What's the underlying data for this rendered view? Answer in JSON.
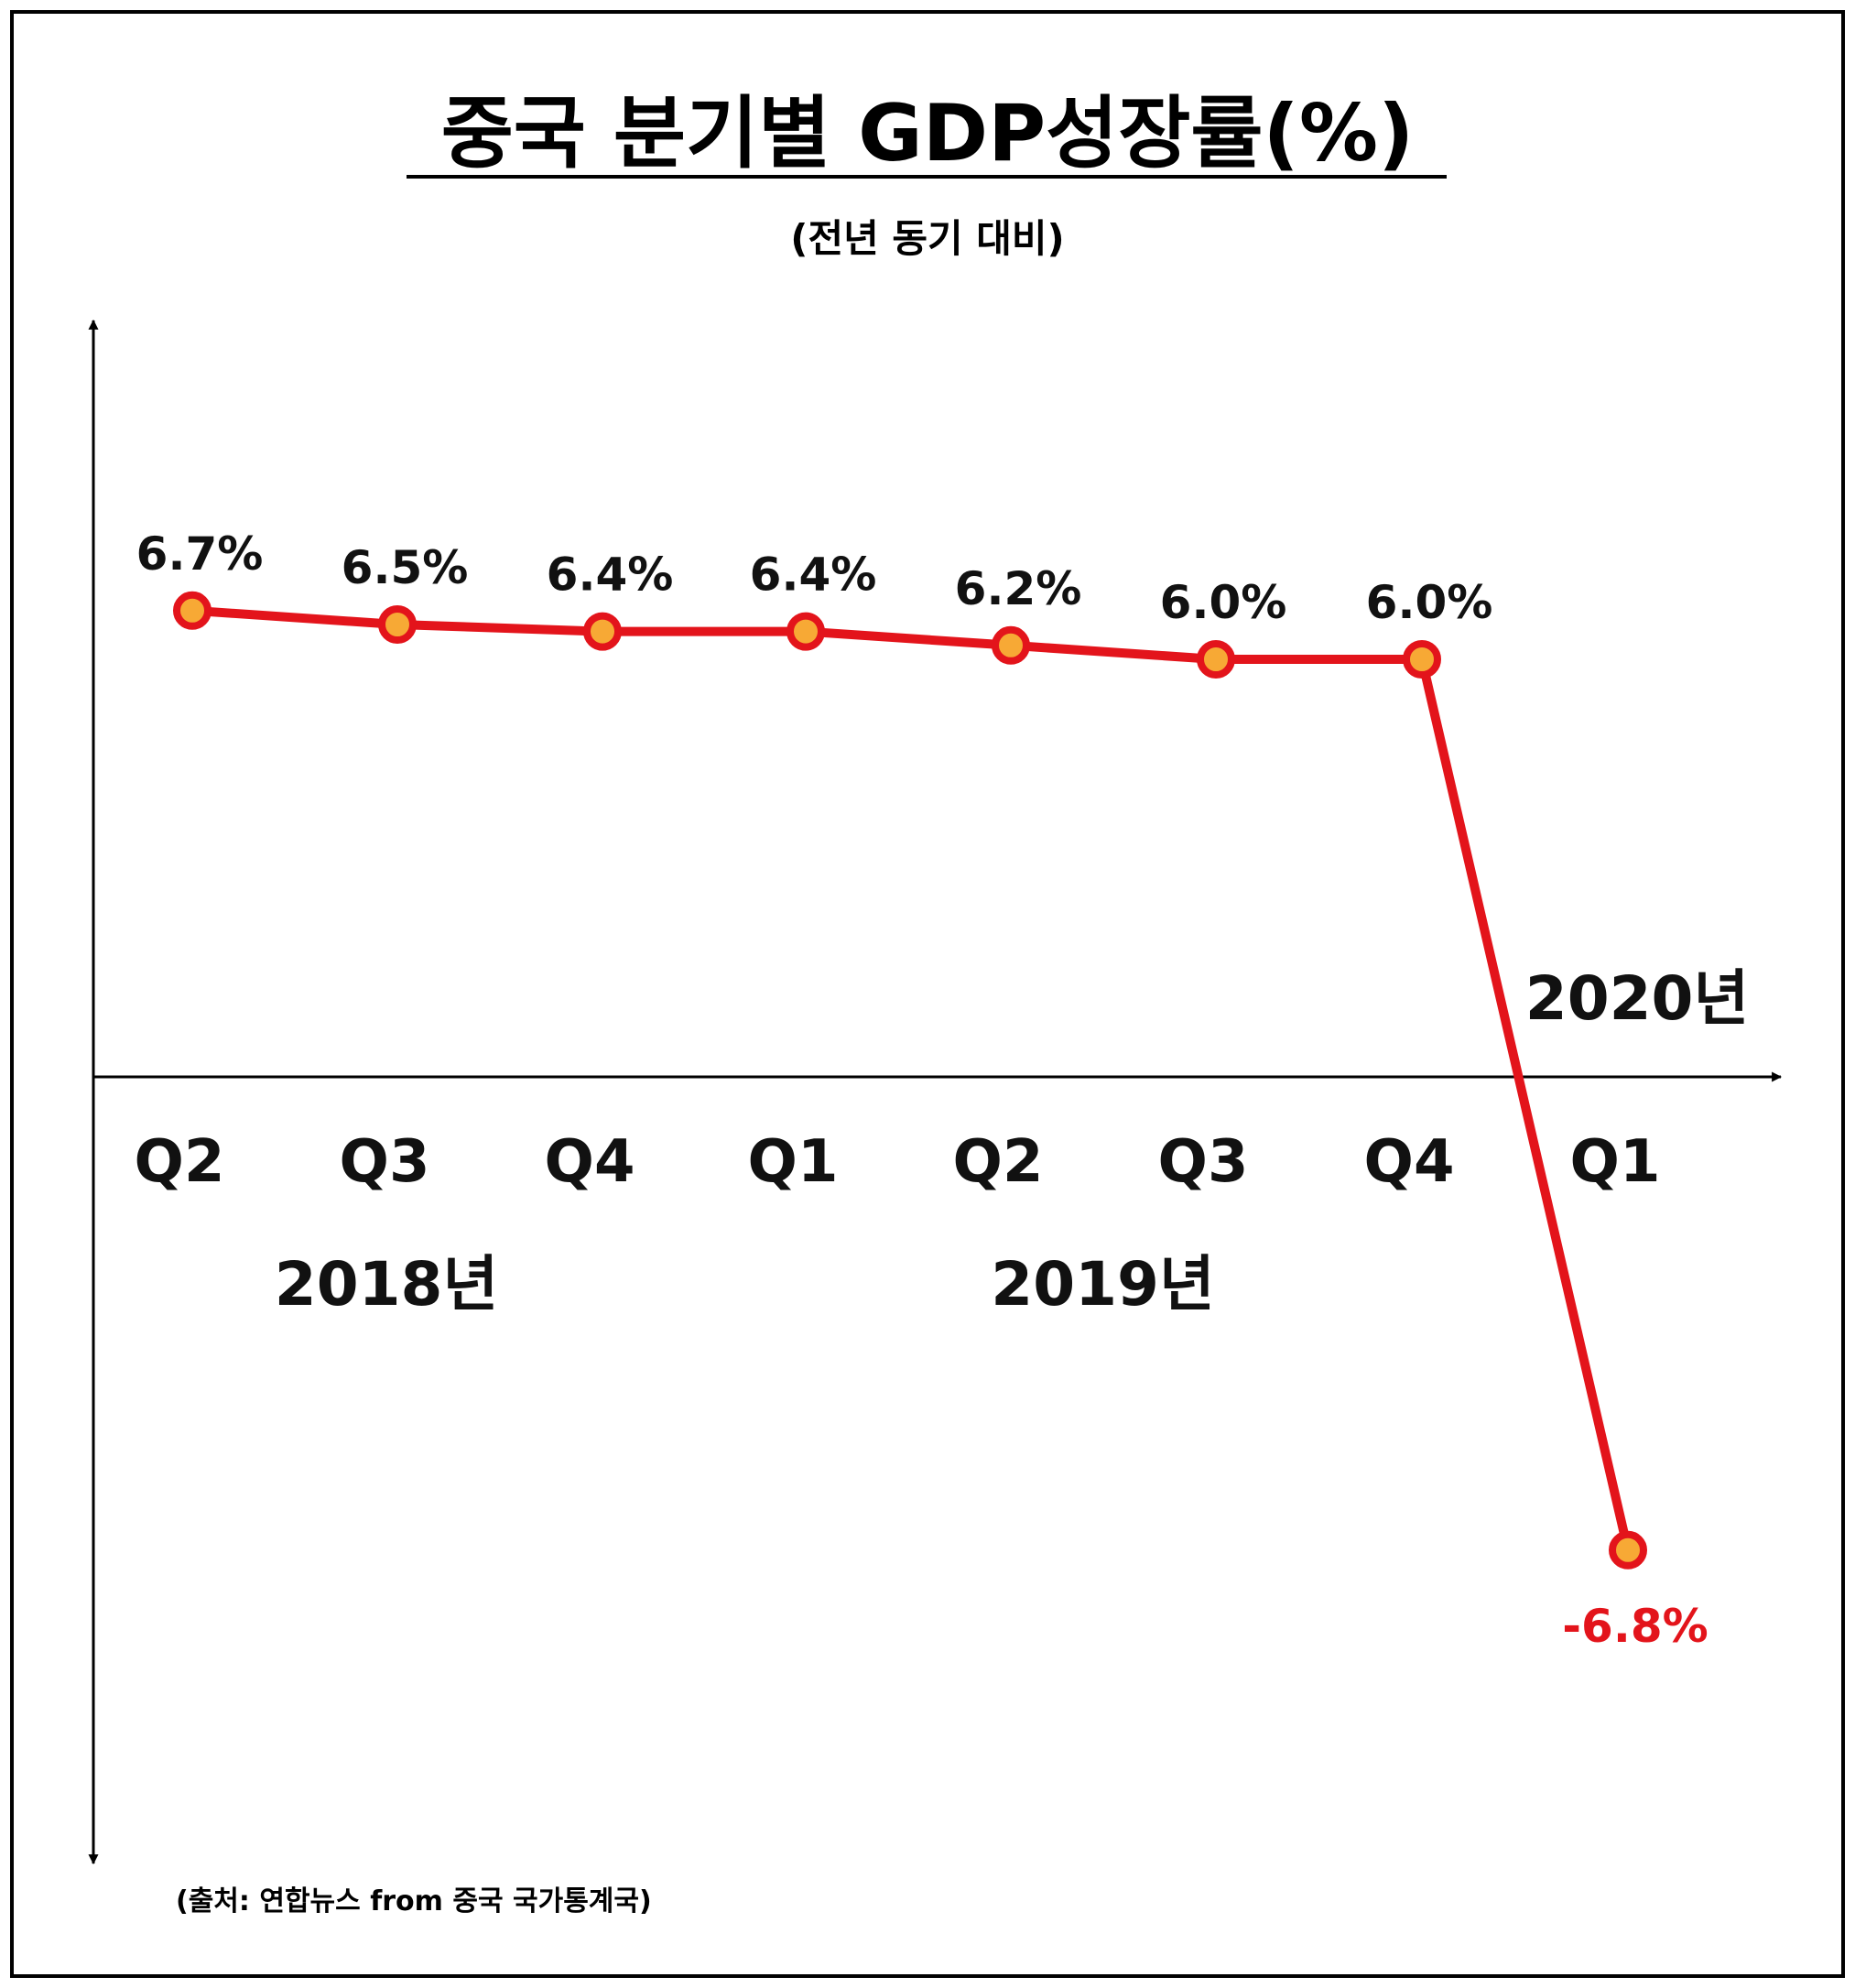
{
  "chart_data": {
    "type": "line",
    "title": "중국 분기별 GDP성장률(%)",
    "subtitle": "(전년 동기 대비)",
    "source": "(출처: 연합뉴스 from 중국 국가통계국)",
    "categories": [
      "Q2",
      "Q3",
      "Q4",
      "Q1",
      "Q2",
      "Q3",
      "Q4",
      "Q1"
    ],
    "values": [
      6.7,
      6.5,
      6.4,
      6.4,
      6.2,
      6.0,
      6.0,
      -6.8
    ],
    "data_labels": [
      "6.7%",
      "6.5%",
      "6.4%",
      "6.4%",
      "6.2%",
      "6.0%",
      "6.0%",
      "-6.8%"
    ],
    "year_labels": [
      {
        "text": "2018년",
        "quarters": [
          0,
          1,
          2
        ]
      },
      {
        "text": "2019년",
        "quarters": [
          3,
          4,
          5,
          6
        ]
      },
      {
        "text": "2020년",
        "quarters": [
          7
        ]
      }
    ],
    "ylim": [
      -8,
      8
    ],
    "grid": false,
    "colors": {
      "line": "#e3141b",
      "marker_fill": "#f7a935",
      "marker_stroke": "#e3141b",
      "label": "#111111",
      "negative_label": "#e3141b",
      "axis": "#000000",
      "frame": "#000000"
    }
  }
}
